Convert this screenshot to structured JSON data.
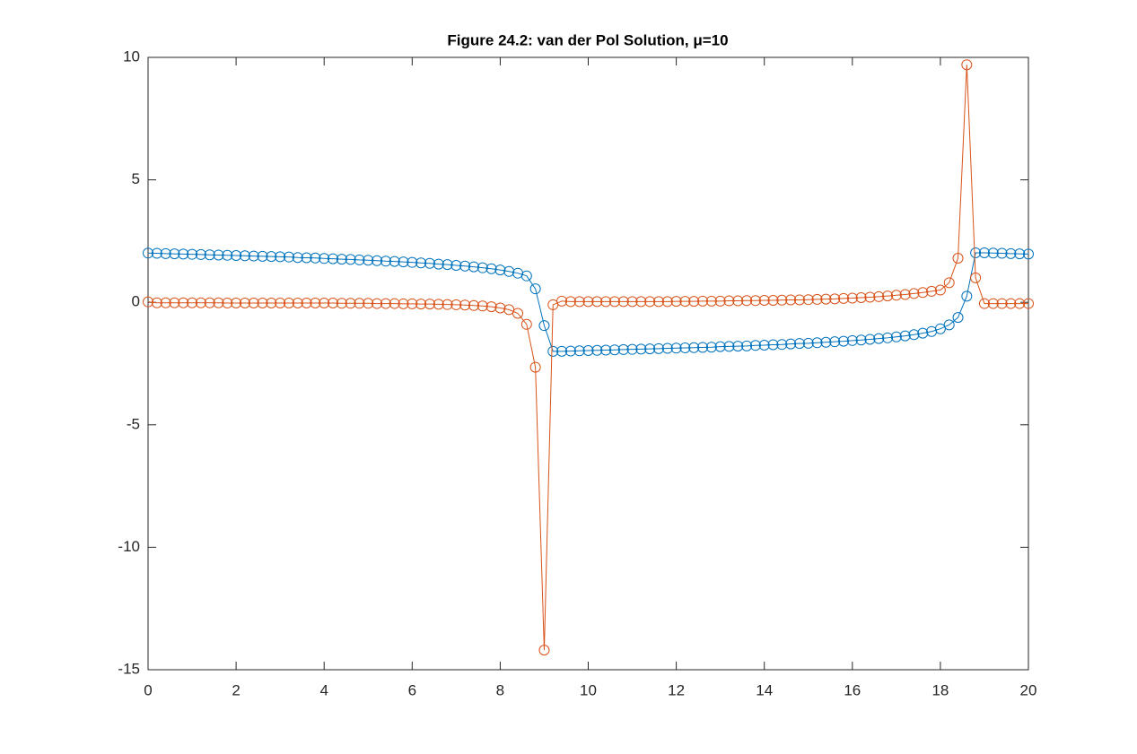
{
  "chart_data": {
    "type": "line",
    "title": "Figure 24.2: van der Pol Solution, μ=10",
    "x": [
      0,
      0.2,
      0.4,
      0.6,
      0.8,
      1,
      1.2,
      1.4,
      1.6,
      1.8,
      2,
      2.2,
      2.4,
      2.6,
      2.8,
      3,
      3.2,
      3.4,
      3.6,
      3.8,
      4,
      4.2,
      4.4,
      4.6,
      4.8,
      5,
      5.2,
      5.4,
      5.6,
      5.8,
      6,
      6.2,
      6.4,
      6.6,
      6.8,
      7,
      7.2,
      7.4,
      7.6,
      7.8,
      8,
      8.2,
      8.4,
      8.6,
      8.8,
      9,
      9.2,
      9.4,
      9.6,
      9.8,
      10,
      10.2,
      10.4,
      10.6,
      10.8,
      11,
      11.2,
      11.4,
      11.6,
      11.8,
      12,
      12.2,
      12.4,
      12.6,
      12.8,
      13,
      13.2,
      13.4,
      13.6,
      13.8,
      14,
      14.2,
      14.4,
      14.6,
      14.8,
      15,
      15.2,
      15.4,
      15.6,
      15.8,
      16,
      16.2,
      16.4,
      16.6,
      16.8,
      17,
      17.2,
      17.4,
      17.6,
      17.8,
      18,
      18.2,
      18.4,
      18.6,
      18.8,
      19,
      19.2,
      19.4,
      19.6,
      19.8,
      20
    ],
    "series": [
      {
        "color": "#0072BD",
        "values": [
          2.01,
          2.0,
          1.99,
          1.98,
          1.97,
          1.96,
          1.95,
          1.94,
          1.93,
          1.92,
          1.91,
          1.9,
          1.89,
          1.88,
          1.87,
          1.86,
          1.85,
          1.83,
          1.82,
          1.81,
          1.79,
          1.78,
          1.76,
          1.75,
          1.73,
          1.72,
          1.7,
          1.68,
          1.67,
          1.65,
          1.63,
          1.61,
          1.59,
          1.56,
          1.54,
          1.51,
          1.48,
          1.45,
          1.41,
          1.37,
          1.32,
          1.26,
          1.19,
          1.08,
          0.55,
          -0.95,
          -2.0,
          -2.0,
          -1.99,
          -1.98,
          -1.97,
          -1.96,
          -1.95,
          -1.94,
          -1.93,
          -1.92,
          -1.91,
          -1.9,
          -1.89,
          -1.88,
          -1.87,
          -1.86,
          -1.85,
          -1.84,
          -1.83,
          -1.81,
          -1.8,
          -1.79,
          -1.78,
          -1.76,
          -1.75,
          -1.73,
          -1.72,
          -1.7,
          -1.68,
          -1.67,
          -1.65,
          -1.63,
          -1.61,
          -1.59,
          -1.56,
          -1.54,
          -1.51,
          -1.48,
          -1.45,
          -1.41,
          -1.37,
          -1.32,
          -1.26,
          -1.19,
          -1.08,
          -0.92,
          -0.62,
          0.25,
          2.02,
          2.02,
          2.01,
          2.0,
          1.99,
          1.98,
          1.97
        ]
      },
      {
        "color": "#D95319",
        "values": [
          0.02,
          -0.02,
          -0.02,
          -0.02,
          -0.02,
          -0.02,
          -0.02,
          -0.02,
          -0.02,
          -0.03,
          -0.03,
          -0.03,
          -0.03,
          -0.03,
          -0.03,
          -0.03,
          -0.03,
          -0.03,
          -0.03,
          -0.03,
          -0.03,
          -0.03,
          -0.04,
          -0.04,
          -0.04,
          -0.04,
          -0.05,
          -0.05,
          -0.05,
          -0.06,
          -0.06,
          -0.07,
          -0.07,
          -0.08,
          -0.09,
          -0.1,
          -0.11,
          -0.13,
          -0.15,
          -0.18,
          -0.23,
          -0.3,
          -0.45,
          -0.9,
          -2.65,
          -14.2,
          -0.1,
          0.05,
          0.03,
          0.03,
          0.03,
          0.03,
          0.03,
          0.03,
          0.03,
          0.03,
          0.03,
          0.03,
          0.03,
          0.03,
          0.04,
          0.04,
          0.04,
          0.05,
          0.05,
          0.05,
          0.06,
          0.06,
          0.07,
          0.07,
          0.08,
          0.08,
          0.09,
          0.1,
          0.1,
          0.11,
          0.12,
          0.13,
          0.14,
          0.16,
          0.17,
          0.19,
          0.21,
          0.23,
          0.26,
          0.29,
          0.32,
          0.36,
          0.4,
          0.45,
          0.5,
          0.8,
          1.8,
          9.7,
          1.0,
          -0.05,
          -0.05,
          -0.05,
          -0.05,
          -0.05,
          -0.05
        ]
      }
    ],
    "xlim": [
      0,
      20
    ],
    "xticks": [
      0,
      2,
      4,
      6,
      8,
      10,
      12,
      14,
      16,
      18,
      20
    ],
    "ylim": [
      -15,
      10
    ],
    "yticks": [
      -15,
      -10,
      -5,
      0,
      5,
      10
    ]
  }
}
